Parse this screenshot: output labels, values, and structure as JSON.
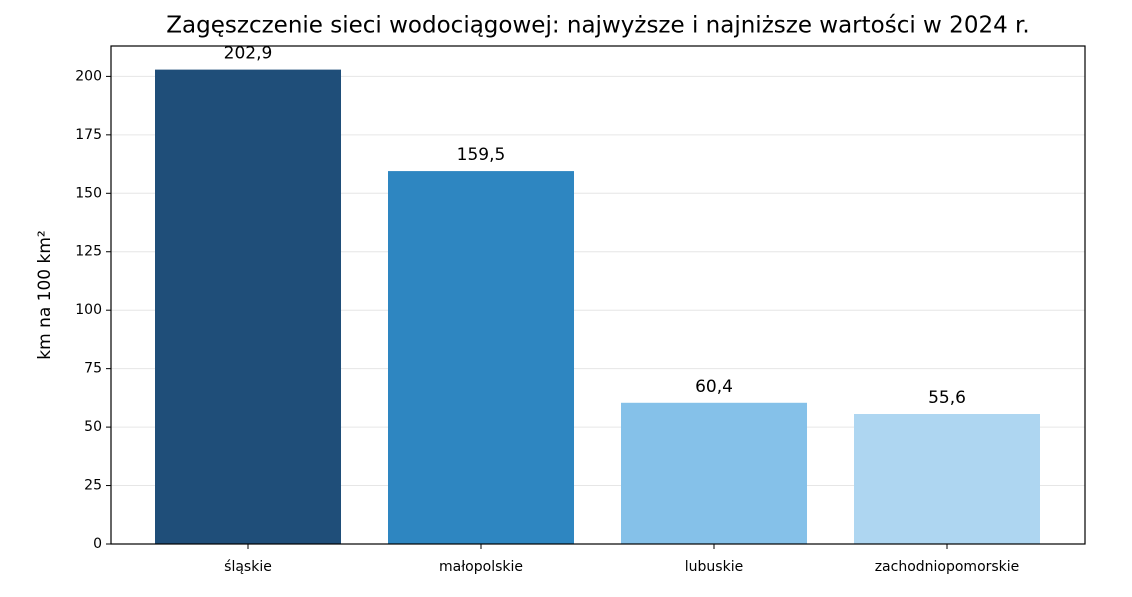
{
  "chart_data": {
    "type": "bar",
    "title": "Zagęszczenie sieci wodociągowej: najwyższe i najniższe wartości w 2024 r.",
    "y_label": "km na 100 km²",
    "categories": [
      "śląskie",
      "małopolskie",
      "lubuskie",
      "zachodniopomorskie"
    ],
    "values": [
      202.9,
      159.5,
      60.4,
      55.6
    ],
    "value_labels": [
      "202,9",
      "159,5",
      "60,4",
      "55,6"
    ],
    "colors": [
      "#1f4e79",
      "#2e86c1",
      "#85c1e9",
      "#aed6f1"
    ],
    "ylim": [
      0,
      213
    ],
    "yticks": [
      0,
      25,
      50,
      75,
      100,
      125,
      150,
      175,
      200
    ],
    "grid": true
  }
}
